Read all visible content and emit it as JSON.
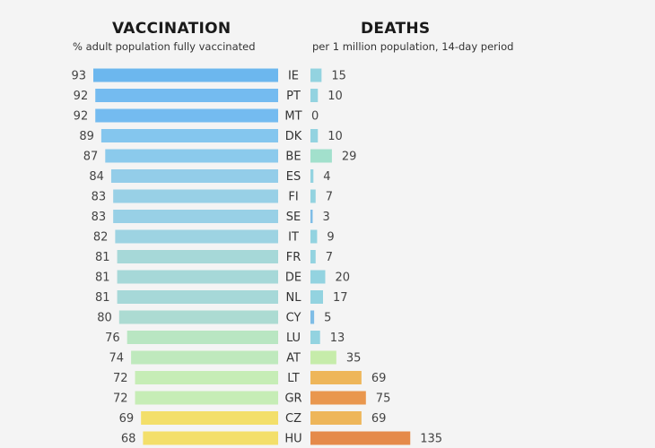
{
  "chart_data": [
    {
      "type": "bar",
      "orientation": "horizontal",
      "title": "VACCINATION",
      "subtitle": "% adult population fully vaccinated",
      "categories": [
        "IE",
        "PT",
        "MT",
        "DK",
        "BE",
        "ES",
        "FI",
        "SE",
        "IT",
        "FR",
        "DE",
        "NL",
        "CY",
        "LU",
        "AT",
        "LT",
        "GR",
        "CZ",
        "HU"
      ],
      "values": [
        93,
        92,
        92,
        89,
        87,
        84,
        83,
        83,
        82,
        81,
        81,
        81,
        80,
        76,
        74,
        72,
        72,
        69,
        68
      ],
      "colors": [
        "#6cb7ee",
        "#74bbf0",
        "#74bbf0",
        "#84c6ee",
        "#8bcaec",
        "#93cde9",
        "#98d0e6",
        "#98d0e6",
        "#9dd3e2",
        "#a6d8d8",
        "#a6d8d8",
        "#a6d8d8",
        "#acdbd2",
        "#b9e6c2",
        "#bfe9bd",
        "#c6edb6",
        "#c6edb6",
        "#f3df6a",
        "#f3df6a"
      ]
    },
    {
      "type": "bar",
      "orientation": "horizontal",
      "title": "DEATHS",
      "subtitle": "per 1 million population, 14-day period",
      "categories": [
        "IE",
        "PT",
        "MT",
        "DK",
        "BE",
        "ES",
        "FI",
        "SE",
        "IT",
        "FR",
        "DE",
        "NL",
        "CY",
        "LU",
        "AT",
        "LT",
        "GR",
        "CZ",
        "HU"
      ],
      "values": [
        15,
        10,
        0,
        10,
        29,
        4,
        7,
        3,
        9,
        7,
        20,
        17,
        5,
        13,
        35,
        69,
        75,
        69,
        135
      ],
      "colors": [
        "#93d3e0",
        "#93d3e0",
        "#93d3e0",
        "#93d3e0",
        "#a2e0cc",
        "#93d3e0",
        "#93d3e0",
        "#7fbde6",
        "#93d3e0",
        "#93d3e0",
        "#93d3e0",
        "#93d3e0",
        "#7fbde6",
        "#93d3e0",
        "#c6ecaa",
        "#eeb65a",
        "#e9974e",
        "#eeb65a",
        "#e58a4a"
      ]
    }
  ]
}
